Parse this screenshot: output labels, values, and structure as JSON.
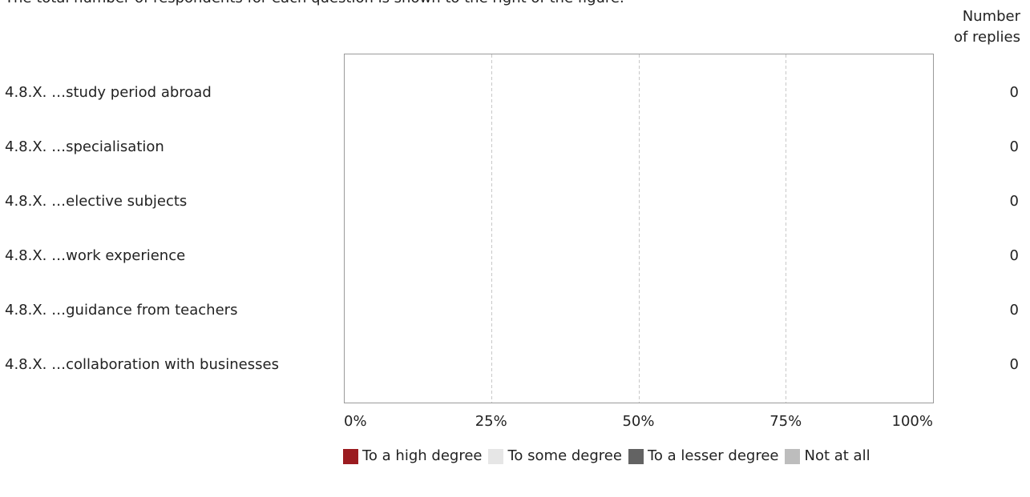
{
  "note": "The total number of respondents for each question is shown to the right of the figure.",
  "count_header": [
    "Number",
    "of replies"
  ],
  "chart_data": {
    "type": "bar",
    "orientation": "horizontal",
    "stacked": true,
    "categories": [
      "4.8.X. …study period abroad",
      "4.8.X. …specialisation",
      "4.8.X. …elective subjects",
      "4.8.X. …work experience",
      "4.8.X. …guidance from teachers",
      "4.8.X. …collaboration with businesses"
    ],
    "counts": [
      "0",
      "0",
      "0",
      "0",
      "0",
      "0"
    ],
    "series": [
      {
        "name": "To a high degree",
        "color": "#9b1c20",
        "values": [
          0,
          0,
          0,
          0,
          0,
          0
        ]
      },
      {
        "name": "To some degree",
        "color": "#e6e6e6",
        "values": [
          0,
          0,
          0,
          0,
          0,
          0
        ]
      },
      {
        "name": "To a lesser degree",
        "color": "#636363",
        "values": [
          0,
          0,
          0,
          0,
          0,
          0
        ]
      },
      {
        "name": "Not at all",
        "color": "#bdbdbd",
        "values": [
          0,
          0,
          0,
          0,
          0,
          0
        ]
      }
    ],
    "xticks": [
      "0%",
      "25%",
      "50%",
      "75%",
      "100%"
    ],
    "xlim": [
      0,
      100
    ],
    "grid": true,
    "legend_position": "bottom"
  }
}
